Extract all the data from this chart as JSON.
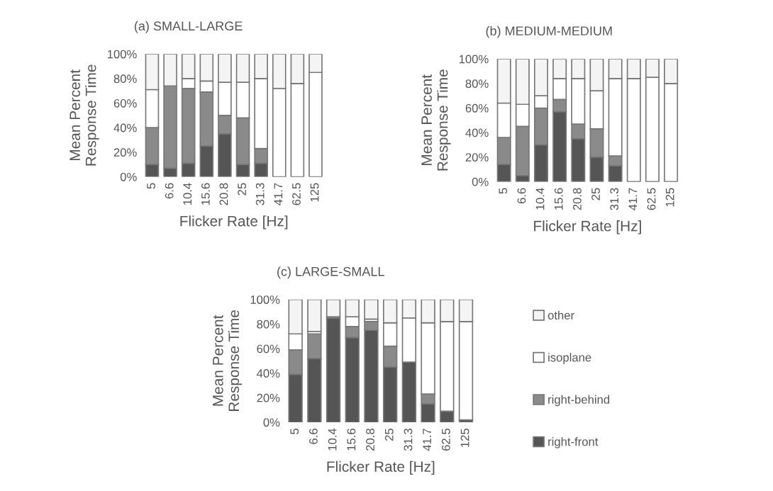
{
  "chart_data": [
    {
      "type": "bar",
      "stacked": true,
      "title": "(a) SMALL-LARGE",
      "xlabel": "Flicker Rate [Hz]",
      "ylabel": "Mean Percent\nResponse Time",
      "categories": [
        "5",
        "6.6",
        "10.4",
        "15.6",
        "20.8",
        "25",
        "31.3",
        "41.7",
        "62.5",
        "125"
      ],
      "ylim": [
        0,
        100
      ],
      "yticks": [
        {
          "value": 0,
          "label": "0%"
        },
        {
          "value": 20,
          "label": "20%"
        },
        {
          "value": 40,
          "label": "40%"
        },
        {
          "value": 60,
          "label": "60%"
        },
        {
          "value": 80,
          "label": "80%"
        },
        {
          "value": 100,
          "label": "100%"
        }
      ],
      "series": [
        {
          "color": "#555555",
          "values": [
            10,
            7,
            11,
            25,
            35,
            10,
            11,
            0,
            0,
            0
          ]
        },
        {
          "color": "#8a8a8a",
          "values": [
            30,
            67,
            61,
            44,
            15,
            38,
            12,
            0,
            0,
            0
          ]
        },
        {
          "color": "#ffffff",
          "values": [
            31,
            0,
            8,
            9,
            27,
            29,
            57,
            72,
            76,
            85
          ]
        },
        {
          "color": "#f4f4f4",
          "values": [
            29,
            26,
            20,
            22,
            23,
            23,
            20,
            28,
            24,
            15
          ]
        }
      ]
    },
    {
      "type": "bar",
      "stacked": true,
      "title": "(b) MEDIUM-MEDIUM",
      "xlabel": "Flicker Rate [Hz]",
      "ylabel": "Mean Percent\nResponse Time",
      "categories": [
        "5",
        "6.6",
        "10.4",
        "15.6",
        "20.8",
        "25",
        "31.3",
        "41.7",
        "62.5",
        "125"
      ],
      "ylim": [
        0,
        100
      ],
      "yticks": [
        {
          "value": 0,
          "label": "0%"
        },
        {
          "value": 20,
          "label": "20%"
        },
        {
          "value": 40,
          "label": "40%"
        },
        {
          "value": 60,
          "label": "60%"
        },
        {
          "value": 80,
          "label": "80%"
        },
        {
          "value": 100,
          "label": "100%"
        }
      ],
      "series": [
        {
          "color": "#555555",
          "values": [
            14,
            5,
            30,
            57,
            35,
            20,
            13,
            0,
            0,
            0
          ]
        },
        {
          "color": "#8a8a8a",
          "values": [
            22,
            40,
            30,
            10,
            12,
            23,
            8,
            0,
            0,
            0
          ]
        },
        {
          "color": "#ffffff",
          "values": [
            28,
            18,
            10,
            17,
            37,
            31,
            63,
            84,
            85,
            80
          ]
        },
        {
          "color": "#f4f4f4",
          "values": [
            36,
            37,
            30,
            16,
            16,
            26,
            16,
            16,
            15,
            20
          ]
        }
      ]
    },
    {
      "type": "bar",
      "stacked": true,
      "title": "(c) LARGE-SMALL",
      "xlabel": "Flicker Rate [Hz]",
      "ylabel": "Mean Percent\nResponse Time",
      "legend": "right",
      "categories": [
        "5",
        "6.6",
        "10.4",
        "15.6",
        "20.8",
        "25",
        "31.3",
        "41.7",
        "62.5",
        "125"
      ],
      "ylim": [
        0,
        100
      ],
      "yticks": [
        {
          "value": 0,
          "label": "0%"
        },
        {
          "value": 20,
          "label": "20%"
        },
        {
          "value": 40,
          "label": "40%"
        },
        {
          "value": 60,
          "label": "60%"
        },
        {
          "value": 80,
          "label": "80%"
        },
        {
          "value": 100,
          "label": "100%"
        }
      ],
      "series": [
        {
          "name": "right-front",
          "color": "#555555",
          "values": [
            39,
            52,
            85,
            69,
            75,
            45,
            49,
            15,
            9,
            2
          ]
        },
        {
          "name": "right-behind",
          "color": "#8a8a8a",
          "values": [
            20,
            20,
            0,
            9,
            7,
            17,
            0,
            8,
            0,
            0
          ]
        },
        {
          "name": "isoplane",
          "color": "#ffffff",
          "values": [
            13,
            2,
            1,
            8,
            2,
            19,
            36,
            58,
            73,
            80
          ]
        },
        {
          "name": "other",
          "color": "#f4f4f4",
          "values": [
            28,
            26,
            14,
            14,
            16,
            19,
            15,
            19,
            18,
            18
          ]
        }
      ]
    }
  ]
}
